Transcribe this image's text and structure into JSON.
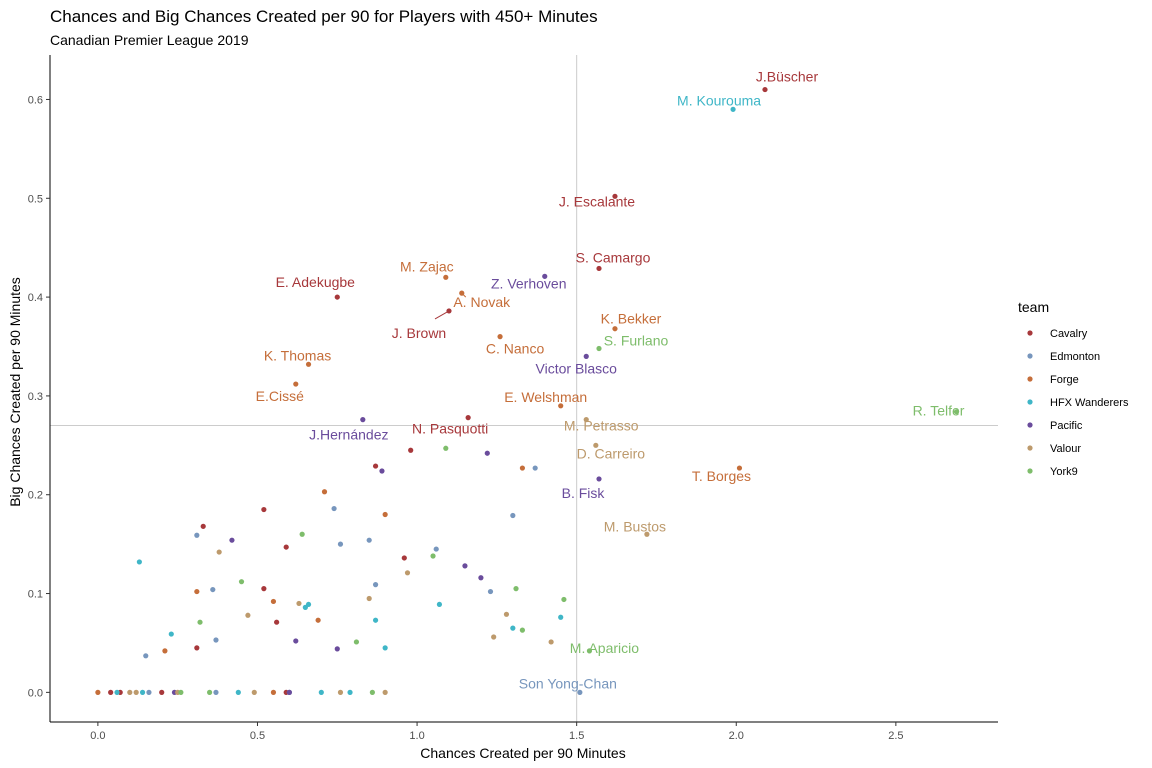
{
  "chart_data": {
    "type": "scatter",
    "title": "Chances and Big Chances Created per 90 for Players with 450+ Minutes",
    "subtitle": "Canadian Premier League 2019",
    "xlabel": "Chances Created per 90 Minutes",
    "ylabel": "Big Chances Created per 90 Minutes",
    "xlim": [
      -0.15,
      2.82
    ],
    "ylim": [
      -0.03,
      0.645
    ],
    "xticks": [
      0.0,
      0.5,
      1.0,
      1.5,
      2.0,
      2.5
    ],
    "xtick_labels": [
      "0.0",
      "0.5",
      "1.0",
      "1.5",
      "2.0",
      "2.5"
    ],
    "yticks": [
      0.0,
      0.1,
      0.2,
      0.3,
      0.4,
      0.5,
      0.6
    ],
    "ytick_labels": [
      "0.0",
      "0.1",
      "0.2",
      "0.3",
      "0.4",
      "0.5",
      "0.6"
    ],
    "reference_lines": {
      "x": 1.5,
      "y": 0.27
    },
    "legend": {
      "title": "team",
      "placement": "right",
      "entries": [
        "Cavalry",
        "Edmonton",
        "Forge",
        "HFX Wanderers",
        "Pacific",
        "Valour",
        "York9"
      ]
    },
    "team_colors": {
      "Cavalry": "#a7383b",
      "Edmonton": "#7796bd",
      "Forge": "#c56e3a",
      "HFX Wanderers": "#3fb6c7",
      "Pacific": "#6a4c9c",
      "Valour": "#bd9a6c",
      "York9": "#7ebd6b"
    },
    "grid": false,
    "labeled_points": [
      {
        "label": "J.Büscher",
        "team": "Cavalry",
        "x": 2.09,
        "y": 0.61
      },
      {
        "label": "M. Kourouma",
        "team": "HFX Wanderers",
        "x": 1.99,
        "y": 0.59
      },
      {
        "label": "J. Escalante",
        "team": "Cavalry",
        "x": 1.62,
        "y": 0.502
      },
      {
        "label": "S. Camargo",
        "team": "Cavalry",
        "x": 1.57,
        "y": 0.429
      },
      {
        "label": "M. Zajac",
        "team": "Forge",
        "x": 1.09,
        "y": 0.42
      },
      {
        "label": "Z. Verhoven",
        "team": "Pacific",
        "x": 1.4,
        "y": 0.421
      },
      {
        "label": "E. Adekugbe",
        "team": "Cavalry",
        "x": 0.75,
        "y": 0.4
      },
      {
        "label": "A. Novak",
        "team": "Forge",
        "x": 1.14,
        "y": 0.404
      },
      {
        "label": "J. Brown",
        "team": "Cavalry",
        "x": 1.1,
        "y": 0.386
      },
      {
        "label": "K. Bekker",
        "team": "Forge",
        "x": 1.62,
        "y": 0.368
      },
      {
        "label": "C. Nanco",
        "team": "Forge",
        "x": 1.26,
        "y": 0.36
      },
      {
        "label": "S. Furlano",
        "team": "York9",
        "x": 1.57,
        "y": 0.348
      },
      {
        "label": "K. Thomas",
        "team": "Forge",
        "x": 0.66,
        "y": 0.332
      },
      {
        "label": "Victor Blasco",
        "team": "Pacific",
        "x": 1.53,
        "y": 0.34
      },
      {
        "label": "E.Cissé",
        "team": "Forge",
        "x": 0.62,
        "y": 0.312
      },
      {
        "label": "E. Welshman",
        "team": "Forge",
        "x": 1.45,
        "y": 0.29
      },
      {
        "label": "R. Telfer",
        "team": "York9",
        "x": 2.69,
        "y": 0.284
      },
      {
        "label": "J.Hernández",
        "team": "Pacific",
        "x": 0.83,
        "y": 0.276
      },
      {
        "label": "N. Pasquotti",
        "team": "Cavalry",
        "x": 1.16,
        "y": 0.278
      },
      {
        "label": "M. Petrasso",
        "team": "Valour",
        "x": 1.53,
        "y": 0.276
      },
      {
        "label": "D. Carreiro",
        "team": "Valour",
        "x": 1.56,
        "y": 0.25
      },
      {
        "label": "T. Borges",
        "team": "Forge",
        "x": 2.01,
        "y": 0.227
      },
      {
        "label": "B. Fisk",
        "team": "Pacific",
        "x": 1.57,
        "y": 0.216
      },
      {
        "label": "M. Bustos",
        "team": "Valour",
        "x": 1.72,
        "y": 0.16
      },
      {
        "label": "M. Aparicio",
        "team": "York9",
        "x": 1.54,
        "y": 0.042
      },
      {
        "label": "Son Yong-Chan",
        "team": "Edmonton",
        "x": 1.51,
        "y": 0.0
      }
    ],
    "points": [
      {
        "team": "Cavalry",
        "x": 0.33,
        "y": 0.168
      },
      {
        "team": "Cavalry",
        "x": 0.52,
        "y": 0.185
      },
      {
        "team": "Cavalry",
        "x": 0.59,
        "y": 0.147
      },
      {
        "team": "Cavalry",
        "x": 0.87,
        "y": 0.229
      },
      {
        "team": "Cavalry",
        "x": 0.98,
        "y": 0.245
      },
      {
        "team": "Cavalry",
        "x": 0.52,
        "y": 0.105
      },
      {
        "team": "Cavalry",
        "x": 0.56,
        "y": 0.071
      },
      {
        "team": "Cavalry",
        "x": 0.31,
        "y": 0.045
      },
      {
        "team": "Cavalry",
        "x": 0.96,
        "y": 0.136
      },
      {
        "team": "Cavalry",
        "x": 0.04,
        "y": 0.0
      },
      {
        "team": "Cavalry",
        "x": 0.07,
        "y": 0.0
      },
      {
        "team": "Cavalry",
        "x": 0.2,
        "y": 0.0
      },
      {
        "team": "Cavalry",
        "x": 0.59,
        "y": 0.0
      },
      {
        "team": "Edmonton",
        "x": 0.31,
        "y": 0.159
      },
      {
        "team": "Edmonton",
        "x": 0.74,
        "y": 0.186
      },
      {
        "team": "Edmonton",
        "x": 0.76,
        "y": 0.15
      },
      {
        "team": "Edmonton",
        "x": 0.85,
        "y": 0.154
      },
      {
        "team": "Edmonton",
        "x": 0.87,
        "y": 0.109
      },
      {
        "team": "Edmonton",
        "x": 1.06,
        "y": 0.145
      },
      {
        "team": "Edmonton",
        "x": 1.23,
        "y": 0.102
      },
      {
        "team": "Edmonton",
        "x": 1.3,
        "y": 0.179
      },
      {
        "team": "Edmonton",
        "x": 1.37,
        "y": 0.227
      },
      {
        "team": "Edmonton",
        "x": 0.36,
        "y": 0.104
      },
      {
        "team": "Edmonton",
        "x": 0.37,
        "y": 0.053
      },
      {
        "team": "Edmonton",
        "x": 0.15,
        "y": 0.037
      },
      {
        "team": "Edmonton",
        "x": 0.16,
        "y": 0.0
      },
      {
        "team": "Edmonton",
        "x": 0.37,
        "y": 0.0
      },
      {
        "team": "Edmonton",
        "x": 0.6,
        "y": 0.0
      },
      {
        "team": "Forge",
        "x": 0.31,
        "y": 0.102
      },
      {
        "team": "Forge",
        "x": 0.55,
        "y": 0.092
      },
      {
        "team": "Forge",
        "x": 0.69,
        "y": 0.073
      },
      {
        "team": "Forge",
        "x": 0.71,
        "y": 0.203
      },
      {
        "team": "Forge",
        "x": 0.9,
        "y": 0.18
      },
      {
        "team": "Forge",
        "x": 1.33,
        "y": 0.227
      },
      {
        "team": "Forge",
        "x": 0.21,
        "y": 0.042
      },
      {
        "team": "Forge",
        "x": 0.0,
        "y": 0.0
      },
      {
        "team": "Forge",
        "x": 0.55,
        "y": 0.0
      },
      {
        "team": "HFX Wanderers",
        "x": 0.13,
        "y": 0.132
      },
      {
        "team": "HFX Wanderers",
        "x": 0.23,
        "y": 0.059
      },
      {
        "team": "HFX Wanderers",
        "x": 0.65,
        "y": 0.086
      },
      {
        "team": "HFX Wanderers",
        "x": 0.66,
        "y": 0.089
      },
      {
        "team": "HFX Wanderers",
        "x": 0.87,
        "y": 0.073
      },
      {
        "team": "HFX Wanderers",
        "x": 0.9,
        "y": 0.045
      },
      {
        "team": "HFX Wanderers",
        "x": 1.07,
        "y": 0.089
      },
      {
        "team": "HFX Wanderers",
        "x": 1.3,
        "y": 0.065
      },
      {
        "team": "HFX Wanderers",
        "x": 1.45,
        "y": 0.076
      },
      {
        "team": "HFX Wanderers",
        "x": 0.06,
        "y": 0.0
      },
      {
        "team": "HFX Wanderers",
        "x": 0.14,
        "y": 0.0
      },
      {
        "team": "HFX Wanderers",
        "x": 0.44,
        "y": 0.0
      },
      {
        "team": "HFX Wanderers",
        "x": 0.7,
        "y": 0.0
      },
      {
        "team": "HFX Wanderers",
        "x": 0.79,
        "y": 0.0
      },
      {
        "team": "Pacific",
        "x": 0.42,
        "y": 0.154
      },
      {
        "team": "Pacific",
        "x": 0.62,
        "y": 0.052
      },
      {
        "team": "Pacific",
        "x": 0.75,
        "y": 0.044
      },
      {
        "team": "Pacific",
        "x": 0.89,
        "y": 0.224
      },
      {
        "team": "Pacific",
        "x": 1.15,
        "y": 0.128
      },
      {
        "team": "Pacific",
        "x": 1.2,
        "y": 0.116
      },
      {
        "team": "Pacific",
        "x": 1.22,
        "y": 0.242
      },
      {
        "team": "Pacific",
        "x": 0.24,
        "y": 0.0
      },
      {
        "team": "Pacific",
        "x": 0.6,
        "y": 0.0
      },
      {
        "team": "Valour",
        "x": 0.38,
        "y": 0.142
      },
      {
        "team": "Valour",
        "x": 0.47,
        "y": 0.078
      },
      {
        "team": "Valour",
        "x": 0.63,
        "y": 0.09
      },
      {
        "team": "Valour",
        "x": 0.85,
        "y": 0.095
      },
      {
        "team": "Valour",
        "x": 0.97,
        "y": 0.121
      },
      {
        "team": "Valour",
        "x": 1.24,
        "y": 0.056
      },
      {
        "team": "Valour",
        "x": 1.28,
        "y": 0.079
      },
      {
        "team": "Valour",
        "x": 1.42,
        "y": 0.051
      },
      {
        "team": "Valour",
        "x": 0.1,
        "y": 0.0
      },
      {
        "team": "Valour",
        "x": 0.12,
        "y": 0.0
      },
      {
        "team": "Valour",
        "x": 0.25,
        "y": 0.0
      },
      {
        "team": "Valour",
        "x": 0.49,
        "y": 0.0
      },
      {
        "team": "Valour",
        "x": 0.76,
        "y": 0.0
      },
      {
        "team": "Valour",
        "x": 0.9,
        "y": 0.0
      },
      {
        "team": "York9",
        "x": 0.32,
        "y": 0.071
      },
      {
        "team": "York9",
        "x": 0.45,
        "y": 0.112
      },
      {
        "team": "York9",
        "x": 0.64,
        "y": 0.16
      },
      {
        "team": "York9",
        "x": 0.81,
        "y": 0.051
      },
      {
        "team": "York9",
        "x": 1.05,
        "y": 0.138
      },
      {
        "team": "York9",
        "x": 1.09,
        "y": 0.247
      },
      {
        "team": "York9",
        "x": 1.31,
        "y": 0.105
      },
      {
        "team": "York9",
        "x": 1.33,
        "y": 0.063
      },
      {
        "team": "York9",
        "x": 1.46,
        "y": 0.094
      },
      {
        "team": "York9",
        "x": 0.26,
        "y": 0.0
      },
      {
        "team": "York9",
        "x": 0.35,
        "y": 0.0
      },
      {
        "team": "York9",
        "x": 0.86,
        "y": 0.0
      }
    ]
  }
}
